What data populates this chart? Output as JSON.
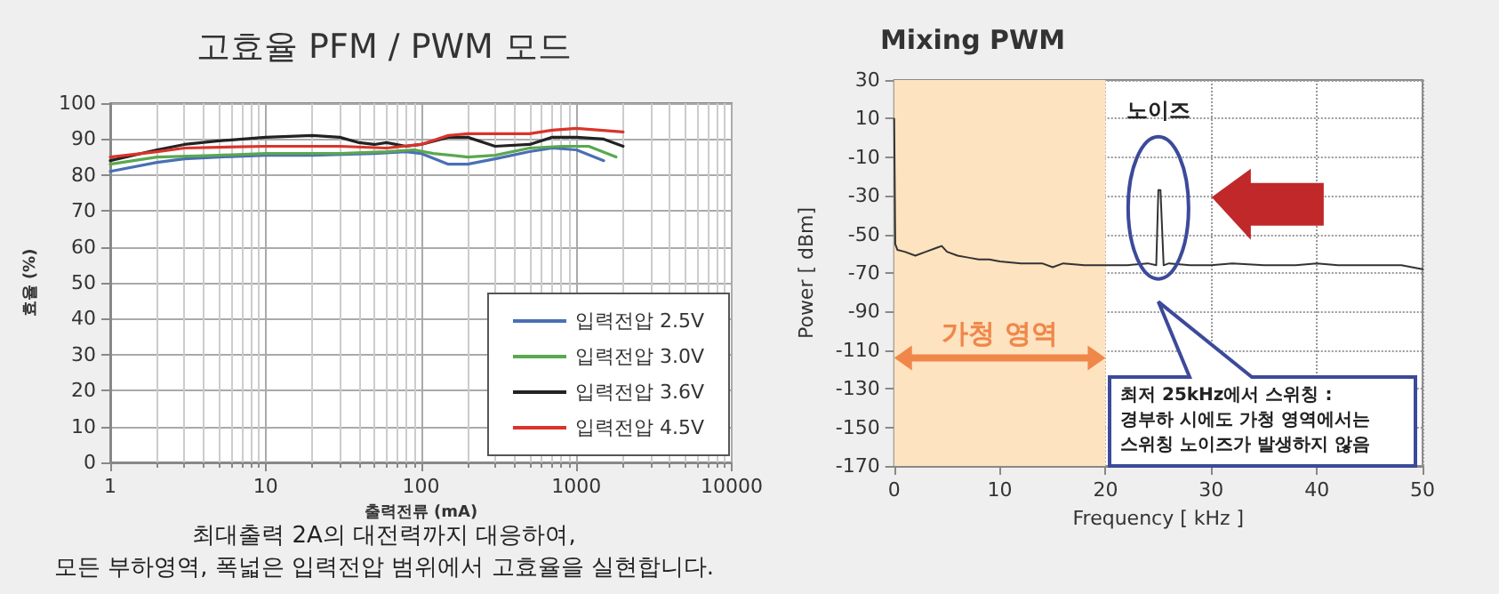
{
  "chart_data": [
    {
      "type": "line",
      "title": "고효율 PFM / PWM 모드",
      "xlabel": "출력전류 (mA)",
      "ylabel": "효율 (%)",
      "annotations": [
        "최대출력 2A의 대전력까지 대응하여,\n모든 부하영역, 폭넓은 입력전압 범위에서 고효율을 실현합니다."
      ],
      "log": "x",
      "xlim": [
        1,
        10000
      ],
      "xticks": [
        1,
        10,
        100,
        1000,
        10000
      ],
      "ylim": [
        0,
        100
      ],
      "yticks": [
        0,
        10,
        20,
        30,
        40,
        50,
        60,
        70,
        80,
        90,
        100
      ],
      "grid": true,
      "legend": "bottom right",
      "marker": "none",
      "line_style": "solid",
      "series": [
        {
          "name": "입력전압 2.5V",
          "color": "#4a6fb5",
          "x": [
            1,
            2,
            3,
            5,
            10,
            20,
            50,
            80,
            100,
            150,
            200,
            300,
            500,
            700,
            1000,
            1500
          ],
          "values": [
            81,
            83.5,
            84.5,
            85,
            85.5,
            85.5,
            86,
            86.5,
            86,
            83,
            83,
            84.5,
            86.5,
            87.5,
            87,
            84
          ]
        },
        {
          "name": "입력전압 3.0V",
          "color": "#5aa84f",
          "x": [
            1,
            2,
            5,
            10,
            30,
            60,
            90,
            120,
            200,
            300,
            500,
            800,
            1200,
            1800
          ],
          "values": [
            83,
            85,
            85.5,
            86,
            86,
            86.5,
            87,
            86,
            85,
            85.5,
            87.5,
            88,
            88,
            85
          ]
        },
        {
          "name": "입력전압 3.6V",
          "color": "#222222",
          "x": [
            1,
            2,
            3,
            5,
            10,
            20,
            30,
            40,
            50,
            60,
            80,
            100,
            150,
            200,
            300,
            500,
            700,
            1000,
            1500,
            2000
          ],
          "values": [
            84,
            87,
            88.5,
            89.5,
            90.5,
            91,
            90.5,
            89,
            88.5,
            89,
            88,
            88.5,
            90.5,
            90.5,
            88,
            88.5,
            90.5,
            90.5,
            90,
            88
          ]
        },
        {
          "name": "입력전압 4.5V",
          "color": "#d9342b",
          "x": [
            1,
            2,
            3,
            10,
            30,
            60,
            100,
            150,
            200,
            300,
            500,
            700,
            1000,
            2000
          ],
          "values": [
            85,
            86.5,
            87.5,
            88,
            88,
            87.5,
            88.5,
            91,
            91.5,
            91.5,
            91.5,
            92.5,
            93,
            92
          ]
        }
      ]
    },
    {
      "type": "line",
      "title": "Mixing PWM",
      "xlabel": "Frequency [ kHz ]",
      "ylabel": "Power [ dBm]",
      "annotations": [
        "노이즈",
        "최저 25kHz에서 스위칭 :\n경부하 시에도 가청 영역에서는\n스위칭 노이즈가 발생하지 않음"
      ],
      "xlim": [
        0,
        50
      ],
      "xticks": [
        0,
        10,
        20,
        30,
        40,
        50
      ],
      "ylim": [
        -170,
        30
      ],
      "yticks": [
        30,
        10,
        -10,
        -30,
        -50,
        -70,
        -90,
        -110,
        -130,
        -150,
        -170
      ],
      "grid": true,
      "marker": "none",
      "line_style": "solid",
      "bands": [
        {
          "axis": "x",
          "from": 0,
          "to": 20,
          "label": "가청 영역",
          "color": "#fde3bf"
        }
      ],
      "series": [
        {
          "color": "#333333",
          "x": [
            0,
            0.1,
            0.3,
            1,
            2,
            3,
            4,
            4.5,
            5,
            6,
            7,
            8,
            9,
            10,
            12,
            14,
            15,
            16,
            18,
            20,
            22,
            24,
            24.8,
            25,
            25.2,
            25.5,
            26,
            28,
            30,
            32,
            35,
            38,
            40,
            42,
            45,
            48,
            50
          ],
          "values": [
            10,
            -55,
            -58,
            -59,
            -61,
            -59,
            -57,
            -56,
            -59,
            -61,
            -62,
            -63,
            -63,
            -64,
            -65,
            -65,
            -67,
            -65,
            -66,
            -66,
            -66,
            -65,
            -66,
            -27,
            -27,
            -66,
            -65,
            -66,
            -66,
            -65,
            -66,
            -66,
            -65,
            -66,
            -66,
            -66,
            -68
          ]
        }
      ]
    }
  ]
}
